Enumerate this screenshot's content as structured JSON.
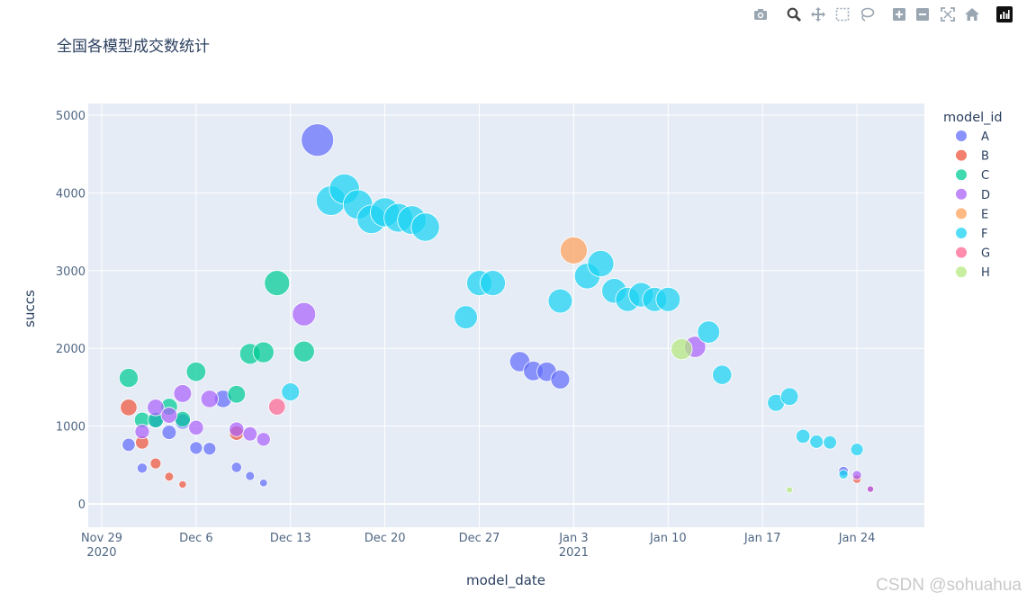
{
  "modebar": {
    "buttons": [
      {
        "name": "camera-icon",
        "title": "Download plot as a png"
      },
      {
        "name": "zoom-icon",
        "title": "Zoom"
      },
      {
        "name": "pan-icon",
        "title": "Pan"
      },
      {
        "name": "box-select-icon",
        "title": "Box Select"
      },
      {
        "name": "lasso-select-icon",
        "title": "Lasso Select"
      },
      {
        "name": "zoom-in-icon",
        "title": "Zoom in"
      },
      {
        "name": "zoom-out-icon",
        "title": "Zoom out"
      },
      {
        "name": "autoscale-icon",
        "title": "Autoscale"
      },
      {
        "name": "reset-axes-icon",
        "title": "Reset axes"
      },
      {
        "name": "plotly-logo-icon",
        "title": "Produced with Plotly"
      }
    ]
  },
  "watermark": "CSDN @sohuahua",
  "chart_data": {
    "type": "scatter",
    "title": "全国各模型成交数统计",
    "xlabel": "model_date",
    "ylabel": "succs",
    "legend_title": "model_id",
    "legend_position": "right",
    "grid": true,
    "xlim": [
      "2020-11-28",
      "2021-01-29"
    ],
    "ylim": [
      -300,
      5150
    ],
    "xticks": [
      {
        "date": "2020-11-29",
        "label": "Nov 29",
        "sub": "2020"
      },
      {
        "date": "2020-12-06",
        "label": "Dec 6",
        "sub": ""
      },
      {
        "date": "2020-12-13",
        "label": "Dec 13",
        "sub": ""
      },
      {
        "date": "2020-12-20",
        "label": "Dec 20",
        "sub": ""
      },
      {
        "date": "2020-12-27",
        "label": "Dec 27",
        "sub": ""
      },
      {
        "date": "2021-01-03",
        "label": "Jan 3",
        "sub": "2021"
      },
      {
        "date": "2021-01-10",
        "label": "Jan 10",
        "sub": ""
      },
      {
        "date": "2021-01-17",
        "label": "Jan 17",
        "sub": ""
      },
      {
        "date": "2021-01-24",
        "label": "Jan 24",
        "sub": ""
      }
    ],
    "yticks": [
      0,
      1000,
      2000,
      3000,
      4000,
      5000
    ],
    "series": [
      {
        "name": "A",
        "color": "#636efa",
        "points": [
          [
            "2020-12-01",
            760
          ],
          [
            "2020-12-02",
            460
          ],
          [
            "2020-12-03",
            1070
          ],
          [
            "2020-12-04",
            920
          ],
          [
            "2020-12-05",
            1060
          ],
          [
            "2020-12-06",
            720
          ],
          [
            "2020-12-07",
            710
          ],
          [
            "2020-12-08",
            1350
          ],
          [
            "2020-12-09",
            470
          ],
          [
            "2020-12-10",
            360
          ],
          [
            "2020-12-11",
            270
          ],
          [
            "2020-12-15",
            4680
          ],
          [
            "2020-12-30",
            1830
          ],
          [
            "2020-12-31",
            1710
          ],
          [
            "2021-01-01",
            1700
          ],
          [
            "2021-01-02",
            1600
          ],
          [
            "2021-01-23",
            420
          ]
        ]
      },
      {
        "name": "B",
        "color": "#EF553B",
        "points": [
          [
            "2020-12-01",
            1240
          ],
          [
            "2020-12-02",
            790
          ],
          [
            "2020-12-03",
            520
          ],
          [
            "2020-12-04",
            350
          ],
          [
            "2020-12-05",
            250
          ],
          [
            "2020-12-09",
            910
          ],
          [
            "2021-01-24",
            320
          ],
          [
            "2021-01-25",
            190
          ]
        ]
      },
      {
        "name": "C",
        "color": "#00cc96",
        "points": [
          [
            "2020-12-01",
            1620
          ],
          [
            "2020-12-02",
            1080
          ],
          [
            "2020-12-03",
            1080
          ],
          [
            "2020-12-04",
            1250
          ],
          [
            "2020-12-05",
            1090
          ],
          [
            "2020-12-06",
            1700
          ],
          [
            "2020-12-09",
            1410
          ],
          [
            "2020-12-10",
            1930
          ],
          [
            "2020-12-11",
            1950
          ],
          [
            "2020-12-12",
            2840
          ],
          [
            "2020-12-14",
            1960
          ]
        ]
      },
      {
        "name": "D",
        "color": "#ab63fa",
        "points": [
          [
            "2020-12-02",
            930
          ],
          [
            "2020-12-03",
            1240
          ],
          [
            "2020-12-04",
            1140
          ],
          [
            "2020-12-05",
            1420
          ],
          [
            "2020-12-06",
            980
          ],
          [
            "2020-12-07",
            1350
          ],
          [
            "2020-12-09",
            960
          ],
          [
            "2020-12-10",
            900
          ],
          [
            "2020-12-11",
            830
          ],
          [
            "2020-12-14",
            2440
          ],
          [
            "2021-01-12",
            2020
          ],
          [
            "2021-01-24",
            370
          ],
          [
            "2021-01-25",
            190
          ]
        ]
      },
      {
        "name": "E",
        "color": "#FFA15A",
        "points": [
          [
            "2021-01-03",
            3260
          ]
        ]
      },
      {
        "name": "F",
        "color": "#19d3f3",
        "points": [
          [
            "2020-12-13",
            1440
          ],
          [
            "2020-12-16",
            3900
          ],
          [
            "2020-12-17",
            4050
          ],
          [
            "2020-12-18",
            3850
          ],
          [
            "2020-12-19",
            3660
          ],
          [
            "2020-12-20",
            3750
          ],
          [
            "2020-12-21",
            3680
          ],
          [
            "2020-12-22",
            3650
          ],
          [
            "2020-12-23",
            3560
          ],
          [
            "2020-12-26",
            2400
          ],
          [
            "2020-12-27",
            2840
          ],
          [
            "2020-12-28",
            2840
          ],
          [
            "2021-01-02",
            2610
          ],
          [
            "2021-01-04",
            2930
          ],
          [
            "2021-01-05",
            3090
          ],
          [
            "2021-01-06",
            2740
          ],
          [
            "2021-01-07",
            2630
          ],
          [
            "2021-01-08",
            2690
          ],
          [
            "2021-01-09",
            2630
          ],
          [
            "2021-01-10",
            2630
          ],
          [
            "2021-01-13",
            2210
          ],
          [
            "2021-01-14",
            1660
          ],
          [
            "2021-01-18",
            1300
          ],
          [
            "2021-01-19",
            1380
          ],
          [
            "2021-01-20",
            870
          ],
          [
            "2021-01-21",
            800
          ],
          [
            "2021-01-22",
            790
          ],
          [
            "2021-01-23",
            380
          ],
          [
            "2021-01-24",
            700
          ]
        ]
      },
      {
        "name": "G",
        "color": "#FF6692",
        "points": [
          [
            "2020-12-12",
            1250
          ]
        ]
      },
      {
        "name": "H",
        "color": "#B6E880",
        "points": [
          [
            "2021-01-11",
            1990
          ],
          [
            "2021-01-19",
            180
          ]
        ]
      }
    ]
  }
}
